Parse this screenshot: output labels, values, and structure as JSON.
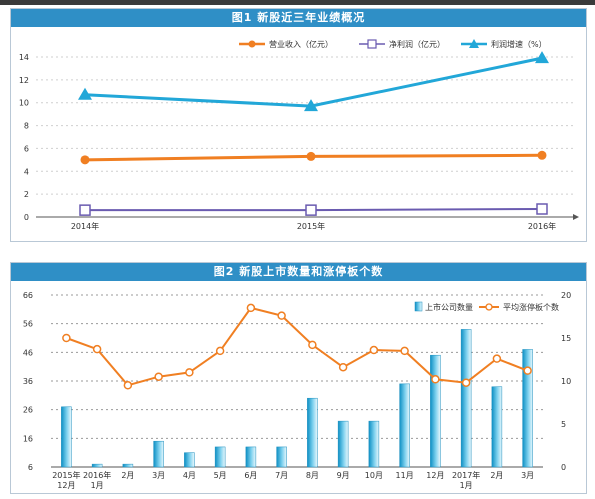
{
  "chart_data": [
    {
      "type": "line",
      "title": "图1 新股近三年业绩概况",
      "x": [
        "2014年",
        "2015年",
        "2016年"
      ],
      "series": [
        {
          "name": "营业收入（亿元）",
          "values": [
            5.0,
            5.3,
            5.4
          ],
          "color": "#f07f22",
          "marker": "circle"
        },
        {
          "name": "净利润（亿元）",
          "values": [
            0.6,
            0.6,
            0.7
          ],
          "color": "#6a5bb0",
          "marker": "square"
        },
        {
          "name": "利润增速（%）",
          "values": [
            10.7,
            9.7,
            13.9
          ],
          "color": "#22a7d8",
          "marker": "triangle"
        }
      ],
      "yticks": [
        0,
        2,
        4,
        6,
        8,
        10,
        12,
        14
      ],
      "ylim": [
        0,
        14
      ],
      "grid": true,
      "legend": "top-right"
    },
    {
      "type": "bar",
      "title": "图2 新股上市数量和涨停板个数",
      "categories": [
        {
          "l1": "2015年",
          "l2": "12月"
        },
        {
          "l1": "2016年",
          "l2": "1月"
        },
        {
          "l1": "2月",
          "l2": ""
        },
        {
          "l1": "3月",
          "l2": ""
        },
        {
          "l1": "4月",
          "l2": ""
        },
        {
          "l1": "5月",
          "l2": ""
        },
        {
          "l1": "6月",
          "l2": ""
        },
        {
          "l1": "7月",
          "l2": ""
        },
        {
          "l1": "8月",
          "l2": ""
        },
        {
          "l1": "9月",
          "l2": ""
        },
        {
          "l1": "10月",
          "l2": ""
        },
        {
          "l1": "11月",
          "l2": ""
        },
        {
          "l1": "12月",
          "l2": ""
        },
        {
          "l1": "2017年",
          "l2": "1月"
        },
        {
          "l1": "2月",
          "l2": ""
        },
        {
          "l1": "3月",
          "l2": ""
        }
      ],
      "series": [
        {
          "name": "上市公司数量",
          "axis": "left",
          "values": [
            27,
            7,
            7,
            15,
            11,
            13,
            13,
            13,
            30,
            22,
            22,
            35,
            45,
            54,
            34,
            47
          ],
          "color": "#22a7d8"
        },
        {
          "name": "平均涨停板个数",
          "axis": "right",
          "values": [
            15,
            13.7,
            9.5,
            10.5,
            11,
            13.5,
            18.5,
            17.6,
            14.2,
            11.6,
            13.6,
            13.5,
            10.2,
            9.8,
            12.6,
            11.2
          ],
          "color": "#f07f22"
        }
      ],
      "yticks_left": [
        6,
        16,
        26,
        36,
        46,
        56,
        66
      ],
      "ylim_left": [
        6,
        66
      ],
      "yticks_right": [
        0,
        5,
        10,
        15,
        20
      ],
      "ylim_right": [
        0,
        20
      ],
      "grid": true,
      "legend": "top-right"
    }
  ]
}
